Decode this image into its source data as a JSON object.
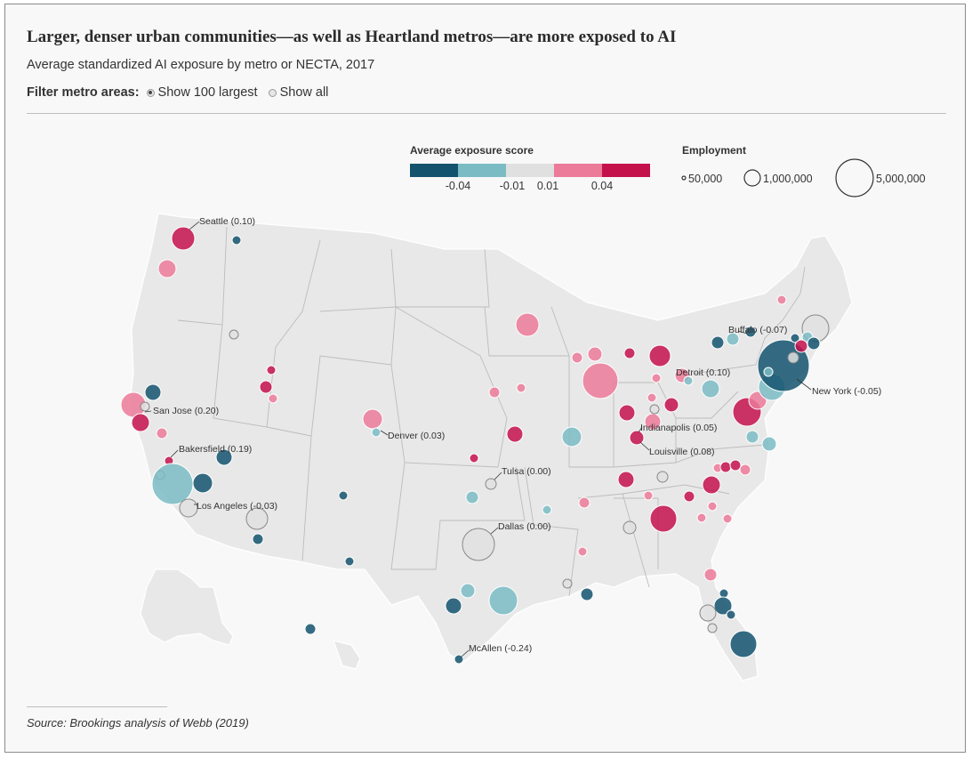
{
  "title": "Larger, denser urban communities—as well as Heartland metros—are more exposed to AI",
  "subtitle": "Average standardized AI exposure by metro or NECTA, 2017",
  "filter": {
    "label": "Filter metro areas:",
    "options": [
      {
        "label": "Show 100 largest",
        "selected": true
      },
      {
        "label": "Show all",
        "selected": false
      }
    ]
  },
  "legend": {
    "color_title": "Average exposure score",
    "color_bins": [
      "#13536e",
      "#7bbcc4",
      "#e0e0e0",
      "#ec7a99",
      "#c4114c"
    ],
    "color_ticks": [
      "-0.04",
      "-0.01",
      "0.01",
      "0.04"
    ],
    "size_title": "Employment",
    "size_entries": [
      {
        "label": "50,000",
        "value": 50000
      },
      {
        "label": "1,000,000",
        "value": 1000000
      },
      {
        "label": "5,000,000",
        "value": 5000000
      }
    ]
  },
  "source": "Source: Brookings analysis of Webb (2019)",
  "metros": [
    {
      "label": "Seattle (0.10)",
      "score": 0.1
    },
    {
      "label": "San Jose (0.20)",
      "score": 0.2
    },
    {
      "label": "Bakersfield (0.19)",
      "score": 0.19
    },
    {
      "label": "Los Angeles (-0.03)",
      "score": -0.03
    },
    {
      "label": "Denver (0.03)",
      "score": 0.03
    },
    {
      "label": "Tulsa (0.00)",
      "score": 0.0
    },
    {
      "label": "Dallas (0.00)",
      "score": 0.0
    },
    {
      "label": "McAllen (-0.24)",
      "score": -0.24
    },
    {
      "label": "Indianapolis (0.05)",
      "score": 0.05
    },
    {
      "label": "Louisville (0.08)",
      "score": 0.08
    },
    {
      "label": "Detroit (0.10)",
      "score": 0.1
    },
    {
      "label": "Buffalo (-0.07)",
      "score": -0.07
    },
    {
      "label": "New York (-0.05)",
      "score": -0.05
    }
  ]
}
